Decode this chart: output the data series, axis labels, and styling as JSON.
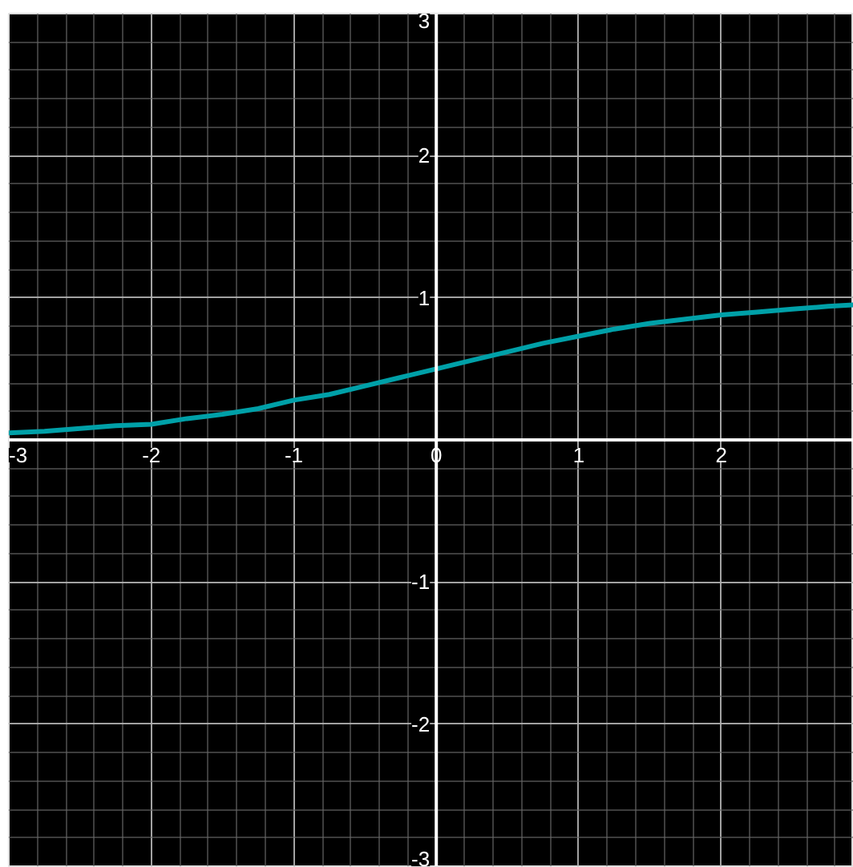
{
  "chart_data": {
    "type": "line",
    "x": [
      -3,
      -2.75,
      -2.5,
      -2.25,
      -2,
      -1.75,
      -1.5,
      -1.25,
      -1,
      -0.75,
      -0.5,
      -0.25,
      0,
      0.25,
      0.5,
      0.75,
      1,
      1.25,
      1.5,
      1.75,
      2,
      2.25,
      2.5,
      2.75,
      2.93
    ],
    "series": [
      {
        "color": "#00a0a8",
        "values": [
          0.05,
          0.06,
          0.08,
          0.1,
          0.11,
          0.15,
          0.18,
          0.22,
          0.28,
          0.32,
          0.38,
          0.44,
          0.5,
          0.56,
          0.62,
          0.68,
          0.73,
          0.78,
          0.82,
          0.85,
          0.88,
          0.9,
          0.92,
          0.94,
          0.95
        ]
      }
    ],
    "xlim": [
      -3,
      2.93
    ],
    "ylim": [
      -3,
      3
    ],
    "xticks": [
      -3,
      -2,
      -1,
      0,
      1,
      2
    ],
    "yticks": [
      -3,
      -2,
      -1,
      1,
      2,
      3
    ],
    "grid": true,
    "marker": "none",
    "line_style": "solid"
  }
}
